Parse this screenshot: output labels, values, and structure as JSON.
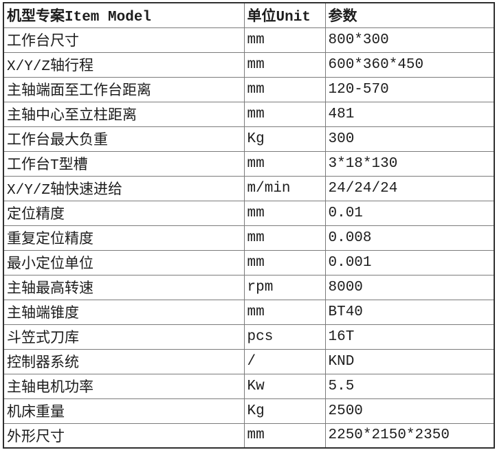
{
  "colors": {
    "background": "#ffffff",
    "outer_border": "#2e2e2e",
    "grid_line": "#7a7a7a",
    "text": "#1c1c1c"
  },
  "table": {
    "columns": [
      {
        "label": "机型专案Item Model"
      },
      {
        "label": "单位Unit"
      },
      {
        "label": "参数"
      }
    ],
    "rows": [
      {
        "item": "工作台尺寸",
        "unit": "mm",
        "value": "800*300"
      },
      {
        "item": "X/Y/Z轴行程",
        "unit": "mm",
        "value": "600*360*450"
      },
      {
        "item": "主轴端面至工作台距离",
        "unit": "mm",
        "value": "120-570"
      },
      {
        "item": "主轴中心至立柱距离",
        "unit": "mm",
        "value": "481"
      },
      {
        "item": "工作台最大负重",
        "unit": "Kg",
        "value": "300"
      },
      {
        "item": "工作台T型槽",
        "unit": "mm",
        "value": "3*18*130"
      },
      {
        "item": "X/Y/Z轴快速进给",
        "unit": "m/min",
        "value": "24/24/24"
      },
      {
        "item": "定位精度",
        "unit": "mm",
        "value": "0.01"
      },
      {
        "item": "重复定位精度",
        "unit": "mm",
        "value": "0.008"
      },
      {
        "item": "最小定位单位",
        "unit": "mm",
        "value": "0.001"
      },
      {
        "item": "主轴最高转速",
        "unit": "rpm",
        "value": "8000"
      },
      {
        "item": "主轴端锥度",
        "unit": "mm",
        "value": "BT40"
      },
      {
        "item": "斗笠式刀库",
        "unit": "pcs",
        "value": "16T"
      },
      {
        "item": "控制器系统",
        "unit": "/",
        "value": "KND"
      },
      {
        "item": "主轴电机功率",
        "unit": "Kw",
        "value": "5.5"
      },
      {
        "item": "机床重量",
        "unit": "Kg",
        "value": "2500"
      },
      {
        "item": "外形尺寸",
        "unit": "mm",
        "value": "2250*2150*2350"
      }
    ]
  }
}
